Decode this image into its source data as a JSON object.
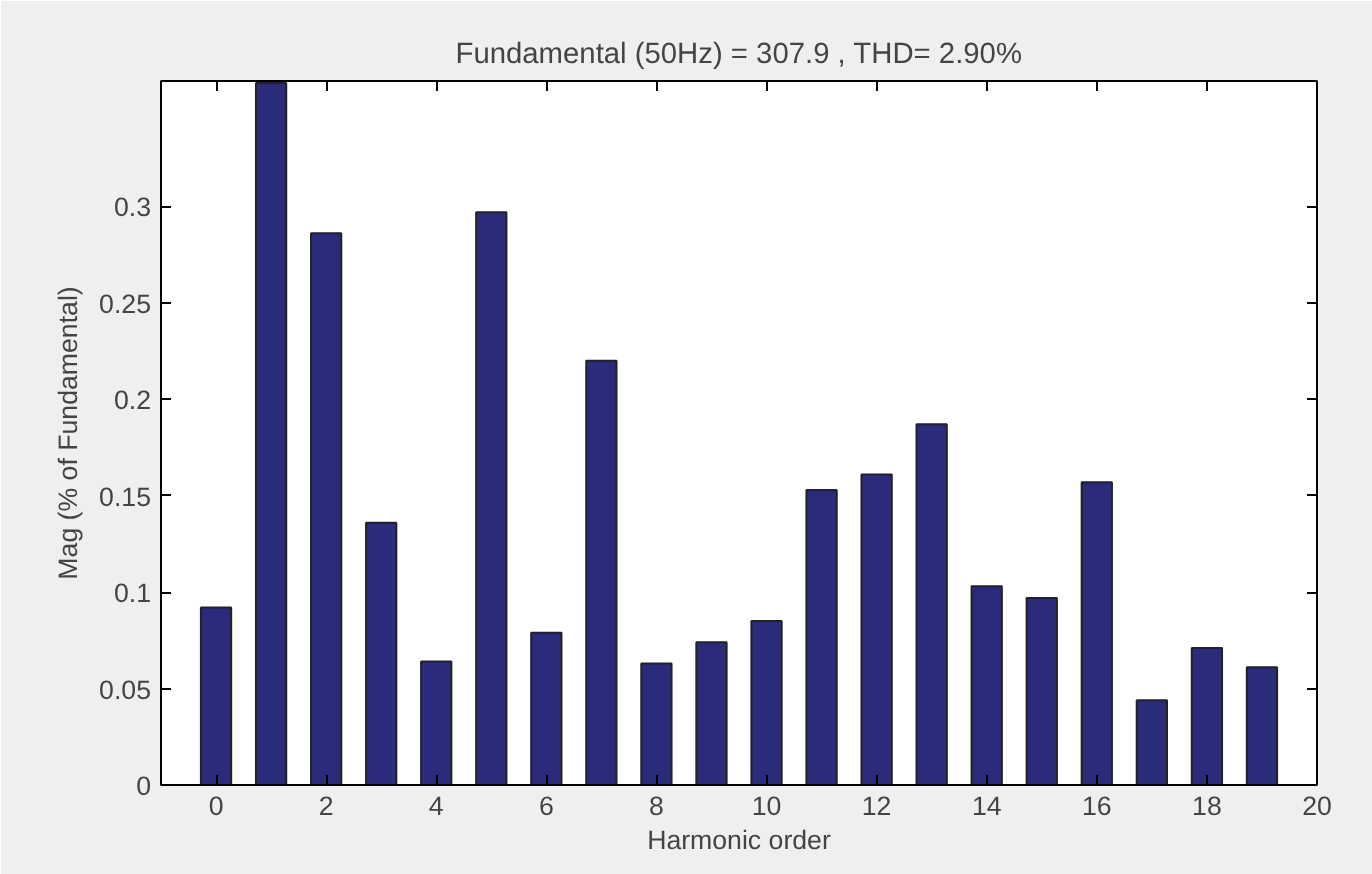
{
  "chart_data": {
    "type": "bar",
    "title": "Fundamental (50Hz) = 307.9 , THD= 2.90%",
    "xlabel": "Harmonic order",
    "ylabel": "Mag (% of Fundamental)",
    "x": [
      0,
      1,
      2,
      3,
      4,
      5,
      6,
      7,
      8,
      9,
      10,
      11,
      12,
      13,
      14,
      15,
      16,
      17,
      18,
      19
    ],
    "values": [
      0.092,
      0.364,
      0.286,
      0.136,
      0.064,
      0.297,
      0.079,
      0.22,
      0.063,
      0.074,
      0.085,
      0.153,
      0.161,
      0.187,
      0.103,
      0.097,
      0.157,
      0.044,
      0.071,
      0.061
    ],
    "color": "#2b2b7b",
    "xlim": [
      -1,
      20
    ],
    "xticks": [
      0,
      2,
      4,
      6,
      8,
      10,
      12,
      14,
      16,
      18,
      20
    ],
    "ylim": [
      0,
      0.365
    ],
    "yticks": [
      0,
      0.05,
      0.1,
      0.15,
      0.2,
      0.25,
      0.3
    ],
    "grid": false
  }
}
